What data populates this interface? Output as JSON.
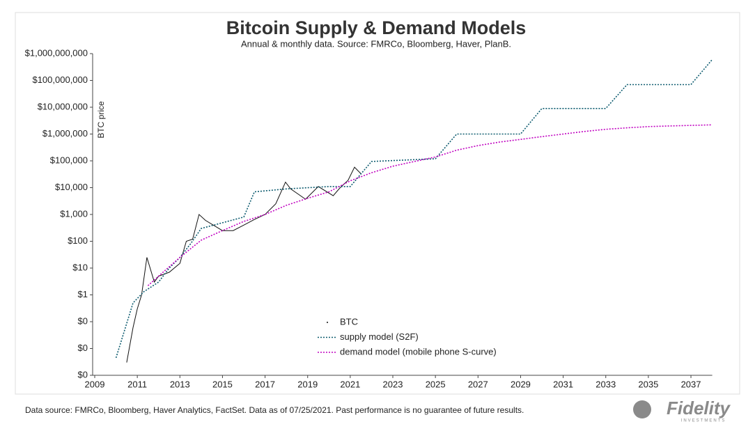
{
  "chart_data": {
    "type": "line",
    "title": "Bitcoin Supply & Demand Models",
    "subtitle": "Annual & monthly data.  Source: FMRCo, Bloomberg, Haver, PlanB.",
    "y_label": "BTC price",
    "log_y": true,
    "xlim": [
      2009,
      2038
    ],
    "xticks": [
      2009,
      2011,
      2013,
      2015,
      2017,
      2019,
      2021,
      2023,
      2025,
      2027,
      2029,
      2031,
      2033,
      2035,
      2037
    ],
    "ylim": [
      0.001,
      1000000000
    ],
    "yticks": [
      {
        "value": 0.001,
        "label": "$0"
      },
      {
        "value": 0.01,
        "label": "$0"
      },
      {
        "value": 0.1,
        "label": "$0"
      },
      {
        "value": 1,
        "label": "$1"
      },
      {
        "value": 10,
        "label": "$10"
      },
      {
        "value": 100,
        "label": "$100"
      },
      {
        "value": 1000,
        "label": "$1,000"
      },
      {
        "value": 10000,
        "label": "$10,000"
      },
      {
        "value": 100000,
        "label": "$100,000"
      },
      {
        "value": 1000000,
        "label": "$1,000,000"
      },
      {
        "value": 10000000,
        "label": "$10,000,000"
      },
      {
        "value": 100000000,
        "label": "$100,000,000"
      },
      {
        "value": 1000000000,
        "label": "$1,000,000,000"
      }
    ],
    "legend": "lower-center",
    "series": [
      {
        "name": "BTC",
        "color": "#111111",
        "style": "solid",
        "x": [
          2010.5,
          2010.8,
          2011.0,
          2011.2,
          2011.45,
          2011.8,
          2012.0,
          2012.5,
          2013.0,
          2013.3,
          2013.6,
          2013.9,
          2014.2,
          2015.0,
          2015.5,
          2016.0,
          2016.5,
          2017.0,
          2017.5,
          2017.96,
          2018.2,
          2018.9,
          2019.5,
          2020.2,
          2020.5,
          2020.9,
          2021.2,
          2021.5
        ],
        "values": [
          0.003,
          0.06,
          0.3,
          1,
          25,
          3,
          5,
          7,
          15,
          100,
          120,
          1000,
          600,
          250,
          250,
          400,
          650,
          1000,
          2500,
          16000,
          9000,
          3700,
          11000,
          5000,
          9500,
          19000,
          58000,
          33000
        ]
      },
      {
        "name": "supply model (S2F)",
        "color": "#0b5a6e",
        "style": "dotted",
        "x": [
          2010.0,
          2010.8,
          2011.3,
          2012.0,
          2012.5,
          2013.0,
          2013.5,
          2014.0,
          2016.0,
          2016.5,
          2018.0,
          2020.0,
          2021.0,
          2022.0,
          2025.0,
          2026.0,
          2029.0,
          2030.0,
          2033.0,
          2034.0,
          2037.0,
          2038.0
        ],
        "values": [
          0.0045,
          0.5,
          1.3,
          3,
          10,
          25,
          80,
          300,
          800,
          7000,
          9000,
          11000,
          11000,
          95000,
          120000,
          1000000,
          1000000,
          9000000,
          9000000,
          70000000,
          70000000,
          600000000
        ]
      },
      {
        "name": "demand model (mobile phone S-curve)",
        "color": "#c000c0",
        "style": "dotted",
        "x": [
          2011.5,
          2012,
          2013,
          2014,
          2015,
          2016,
          2017,
          2018,
          2019,
          2020,
          2021,
          2022,
          2023,
          2024,
          2025,
          2026,
          2027,
          2028,
          2029,
          2030,
          2031,
          2032,
          2033,
          2034,
          2035,
          2036,
          2037,
          2038
        ],
        "values": [
          2.2,
          5,
          25,
          110,
          250,
          550,
          1000,
          2200,
          4000,
          7000,
          18000,
          36000,
          63000,
          94000,
          140000,
          250000,
          370000,
          500000,
          630000,
          800000,
          1000000,
          1250000,
          1500000,
          1700000,
          1900000,
          2000000,
          2100000,
          2200000
        ]
      }
    ]
  },
  "footnote": "Data source: FMRCo, Bloomberg, Haver Analytics, FactSet. Data as of 07/25/2021. Past performance is no guarantee of future results.",
  "logo": {
    "name": "Fidelity",
    "tagline": "INVESTMENTS"
  }
}
